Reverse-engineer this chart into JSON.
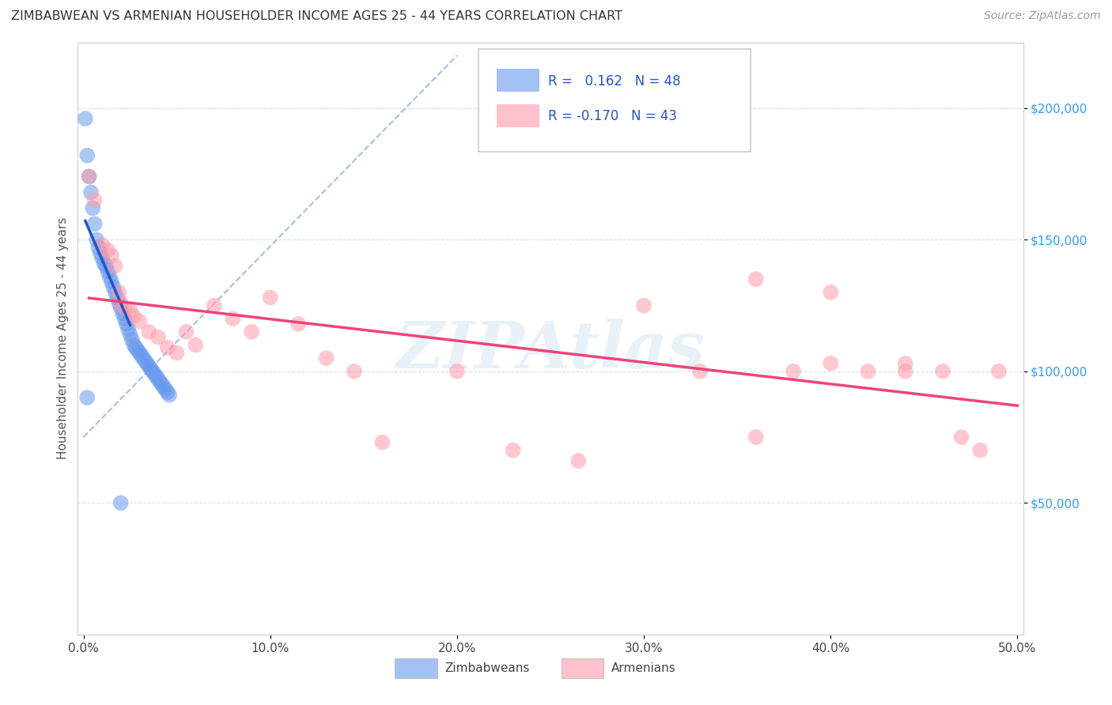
{
  "title": "ZIMBABWEAN VS ARMENIAN HOUSEHOLDER INCOME AGES 25 - 44 YEARS CORRELATION CHART",
  "source": "Source: ZipAtlas.com",
  "ylabel_label": "Householder Income Ages 25 - 44 years",
  "xlim": [
    -0.003,
    0.503
  ],
  "ylim": [
    0,
    225000
  ],
  "zimbabwean_R": 0.162,
  "zimbabwean_N": 48,
  "armenian_R": -0.17,
  "armenian_N": 43,
  "zimbabwean_color": "#6699ee",
  "armenian_color": "#ff99aa",
  "trendline_zim_color": "#2255cc",
  "trendline_arm_color": "#ee4477",
  "diagonal_color": "#99bbdd",
  "zim_x": [
    0.001,
    0.002,
    0.003,
    0.004,
    0.005,
    0.006,
    0.007,
    0.008,
    0.009,
    0.01,
    0.011,
    0.012,
    0.013,
    0.014,
    0.015,
    0.016,
    0.017,
    0.018,
    0.019,
    0.02,
    0.021,
    0.022,
    0.023,
    0.024,
    0.025,
    0.026,
    0.027,
    0.028,
    0.029,
    0.03,
    0.031,
    0.032,
    0.033,
    0.034,
    0.035,
    0.036,
    0.037,
    0.038,
    0.039,
    0.04,
    0.041,
    0.042,
    0.043,
    0.044,
    0.045,
    0.046,
    0.002,
    0.02
  ],
  "zim_y": [
    196000,
    182000,
    174000,
    168000,
    162000,
    156000,
    150000,
    147000,
    145000,
    143000,
    141000,
    140000,
    138000,
    136000,
    134000,
    132000,
    130000,
    128000,
    126000,
    124000,
    122000,
    120000,
    118000,
    116000,
    114000,
    112000,
    110000,
    109000,
    108000,
    107000,
    106000,
    105000,
    104000,
    103000,
    102000,
    101000,
    100000,
    99000,
    98000,
    97000,
    96000,
    95000,
    94000,
    93000,
    92000,
    91000,
    90000,
    50000
  ],
  "arm_x": [
    0.003,
    0.006,
    0.01,
    0.013,
    0.015,
    0.017,
    0.019,
    0.02,
    0.022,
    0.025,
    0.027,
    0.03,
    0.035,
    0.04,
    0.045,
    0.05,
    0.055,
    0.06,
    0.07,
    0.08,
    0.09,
    0.1,
    0.115,
    0.13,
    0.145,
    0.16,
    0.2,
    0.23,
    0.265,
    0.3,
    0.33,
    0.36,
    0.38,
    0.4,
    0.42,
    0.44,
    0.46,
    0.47,
    0.48,
    0.49,
    0.36,
    0.4,
    0.44
  ],
  "arm_y": [
    174000,
    165000,
    148000,
    146000,
    144000,
    140000,
    130000,
    126000,
    124000,
    123000,
    121000,
    119000,
    115000,
    113000,
    109000,
    107000,
    115000,
    110000,
    125000,
    120000,
    115000,
    128000,
    118000,
    105000,
    100000,
    73000,
    100000,
    70000,
    66000,
    125000,
    100000,
    75000,
    100000,
    103000,
    100000,
    103000,
    100000,
    75000,
    70000,
    100000,
    135000,
    130000,
    100000
  ]
}
